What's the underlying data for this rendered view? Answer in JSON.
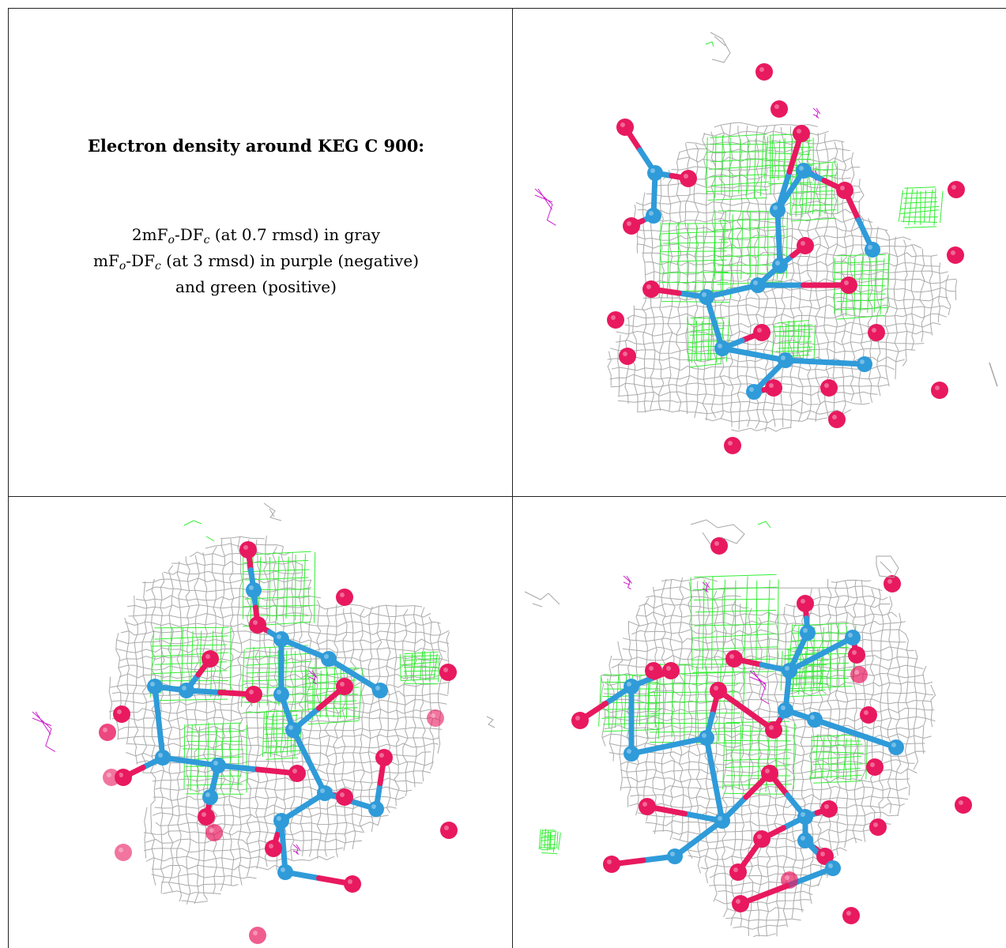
{
  "caption": {
    "title": "Electron density around KEG C 900:",
    "line1_prefix": "2mF",
    "line1_sub1": "o",
    "line1_mid": "-DF",
    "line1_sub2": "c",
    "line1_suffix": " (at 0.7 rmsd) in gray",
    "line2_prefix": "mF",
    "line2_sub1": "o",
    "line2_mid": "-DF",
    "line2_sub2": "c",
    "line2_suffix": " (at 3 rmsd) in purple (negative)",
    "line3": "and green (positive)"
  },
  "colors": {
    "mesh_gray": "#a6a6a6",
    "mesh_green": "#33ee33",
    "mesh_purple": "#cc22cc",
    "oxygen": "#e8195f",
    "carbon": "#2f9bd9",
    "border": "#222222"
  },
  "panels": [
    {
      "name": "density-view-top-right"
    },
    {
      "name": "density-view-bottom-left"
    },
    {
      "name": "density-view-bottom-right"
    }
  ]
}
